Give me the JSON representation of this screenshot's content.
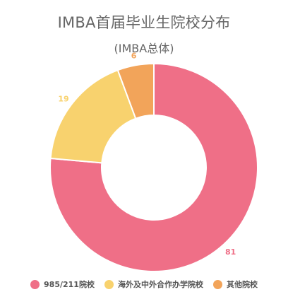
{
  "chart_data": {
    "type": "pie",
    "title": "IMBA首届毕业生院校分布",
    "subtitle": "(IMBA总体)",
    "categories": [
      "985/211院校",
      "海外及中外合作办学院校",
      "其他院校"
    ],
    "values": [
      81,
      19,
      6
    ],
    "colors": [
      "#ef6f87",
      "#f8d26e",
      "#f2a45a"
    ],
    "donut": true,
    "legend": "bottom"
  }
}
